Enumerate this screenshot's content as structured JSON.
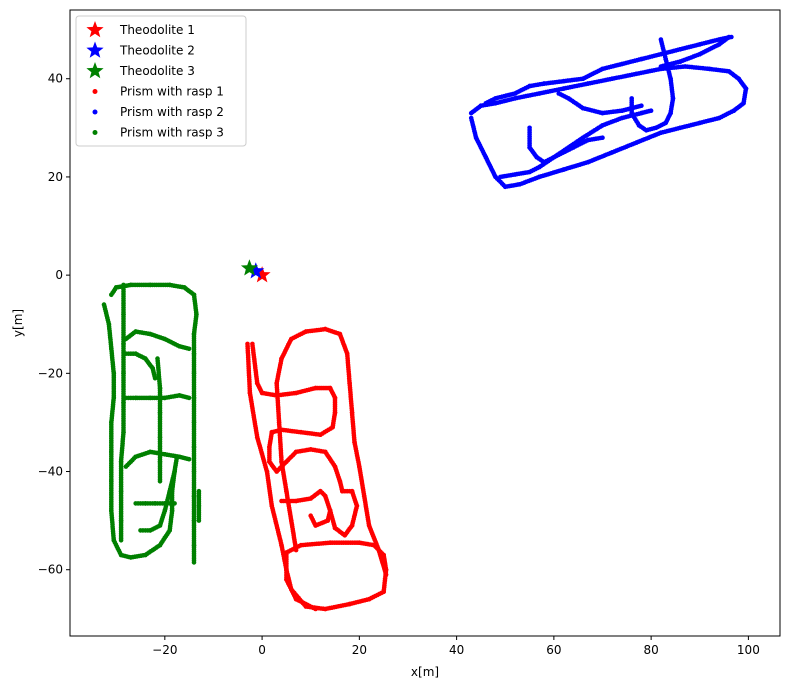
{
  "chart_data": {
    "type": "scatter",
    "xlabel": "x[m]",
    "ylabel": "y[m]",
    "xlim": [
      -39.5,
      106.5
    ],
    "ylim": [
      -73.5,
      54
    ],
    "xticks": [
      -20,
      0,
      20,
      40,
      60,
      80,
      100
    ],
    "yticks": [
      -60,
      -40,
      -20,
      0,
      20,
      40
    ],
    "grid": false,
    "legend_position": "upper-left",
    "theodolites": [
      {
        "name": "Theodolite 1",
        "color": "#ff0000",
        "x": 0.0,
        "y": 0.0
      },
      {
        "name": "Theodolite 2",
        "color": "#0000ff",
        "x": -1.3,
        "y": 0.8
      },
      {
        "name": "Theodolite 3",
        "color": "#008000",
        "x": -2.6,
        "y": 1.4
      }
    ],
    "series": [
      {
        "name": "Prism with rasp 1",
        "color": "#ff0000",
        "paths": [
          [
            [
              -3,
              -14
            ],
            [
              -2.5,
              -24
            ],
            [
              -1,
              -33
            ],
            [
              1,
              -40
            ],
            [
              2,
              -47
            ],
            [
              4,
              -55
            ],
            [
              5,
              -60
            ],
            [
              6,
              -64
            ],
            [
              9,
              -67.5
            ],
            [
              13,
              -68
            ],
            [
              18,
              -67
            ],
            [
              22,
              -66
            ],
            [
              25,
              -64.5
            ],
            [
              25.5,
              -60
            ],
            [
              25,
              -57
            ],
            [
              23,
              -55
            ],
            [
              20,
              -54.5
            ],
            [
              14,
              -54.5
            ],
            [
              8,
              -55
            ],
            [
              5,
              -56.5
            ],
            [
              5,
              -62
            ],
            [
              7,
              -66
            ],
            [
              11,
              -68
            ]
          ],
          [
            [
              3,
              -22
            ],
            [
              4,
              -17
            ],
            [
              6,
              -13
            ],
            [
              9,
              -11.5
            ],
            [
              13,
              -11
            ],
            [
              16,
              -12
            ],
            [
              17.5,
              -16
            ],
            [
              18,
              -22
            ],
            [
              18.5,
              -28
            ],
            [
              19,
              -34
            ],
            [
              20,
              -39
            ],
            [
              21,
              -45
            ],
            [
              22,
              -51
            ],
            [
              24,
              -56
            ],
            [
              25.5,
              -61
            ]
          ],
          [
            [
              -2,
              -14
            ],
            [
              -1,
              -22
            ],
            [
              0,
              -24
            ],
            [
              3,
              -24.5
            ],
            [
              7,
              -24
            ],
            [
              11,
              -23
            ],
            [
              14,
              -23
            ],
            [
              15,
              -25
            ],
            [
              15,
              -28
            ],
            [
              14.5,
              -31
            ],
            [
              12,
              -32.5
            ],
            [
              8,
              -32
            ],
            [
              4,
              -31.5
            ],
            [
              2,
              -32
            ],
            [
              1.5,
              -35
            ],
            [
              1.5,
              -38
            ],
            [
              3,
              -40
            ],
            [
              5,
              -38
            ],
            [
              7,
              -36
            ],
            [
              10,
              -35.5
            ],
            [
              13,
              -36
            ],
            [
              15,
              -39
            ],
            [
              16,
              -42
            ],
            [
              16.5,
              -44
            ],
            [
              18.5,
              -44
            ],
            [
              19.5,
              -47
            ],
            [
              18.5,
              -51
            ],
            [
              17,
              -53
            ],
            [
              15,
              -51.5
            ],
            [
              14,
              -48
            ]
          ],
          [
            [
              4,
              -46
            ],
            [
              7,
              -46
            ],
            [
              10,
              -45.5
            ],
            [
              12,
              -44
            ],
            [
              13,
              -45
            ],
            [
              14,
              -48
            ],
            [
              13.5,
              -50
            ],
            [
              11,
              -51
            ],
            [
              10,
              -49
            ]
          ],
          [
            [
              3,
              -22
            ],
            [
              3.5,
              -30
            ],
            [
              4,
              -38
            ],
            [
              5,
              -44
            ],
            [
              6,
              -50
            ],
            [
              7,
              -56
            ]
          ]
        ]
      },
      {
        "name": "Prism with rasp 2",
        "color": "#0000ff",
        "paths": [
          [
            [
              43,
              32
            ],
            [
              44,
              28
            ],
            [
              46,
              24
            ],
            [
              48,
              20
            ],
            [
              50,
              18
            ],
            [
              53,
              18.5
            ],
            [
              57,
              20
            ],
            [
              62,
              21.5
            ],
            [
              67,
              23
            ],
            [
              72,
              25
            ],
            [
              77,
              27
            ],
            [
              82,
              29
            ],
            [
              86,
              30
            ],
            [
              90,
              31
            ],
            [
              94,
              32
            ],
            [
              97,
              33.5
            ],
            [
              99,
              35
            ],
            [
              99.5,
              38
            ],
            [
              98,
              40
            ],
            [
              96,
              41.5
            ],
            [
              92,
              42
            ],
            [
              87,
              42.5
            ],
            [
              82,
              42
            ],
            [
              77,
              41
            ],
            [
              72,
              40
            ],
            [
              67,
              39
            ],
            [
              62,
              38
            ],
            [
              57,
              37
            ],
            [
              52,
              36
            ],
            [
              48,
              35
            ],
            [
              45,
              34.5
            ],
            [
              43,
              33
            ]
          ],
          [
            [
              46,
              35
            ],
            [
              48,
              36
            ],
            [
              52,
              37
            ],
            [
              55,
              38.5
            ],
            [
              58,
              39
            ],
            [
              62,
              39.5
            ],
            [
              66,
              40
            ],
            [
              70,
              42
            ],
            [
              74,
              43
            ],
            [
              78,
              44
            ],
            [
              82,
              45
            ],
            [
              86,
              46
            ],
            [
              90,
              47
            ],
            [
              94,
              48
            ],
            [
              96.5,
              48.5
            ]
          ],
          [
            [
              49,
              20
            ],
            [
              52,
              20.5
            ],
            [
              55,
              21
            ],
            [
              57,
              22
            ],
            [
              60,
              24
            ],
            [
              63,
              26
            ],
            [
              66,
              28
            ],
            [
              70,
              30.5
            ],
            [
              74,
              32
            ],
            [
              78,
              33
            ],
            [
              80,
              33.5
            ]
          ],
          [
            [
              55,
              30
            ],
            [
              55,
              26
            ],
            [
              56.5,
              24
            ],
            [
              58,
              23
            ],
            [
              61,
              24.5
            ],
            [
              64,
              26
            ],
            [
              67,
              27.5
            ],
            [
              70,
              28
            ]
          ],
          [
            [
              61,
              37
            ],
            [
              63,
              36
            ],
            [
              66,
              34
            ],
            [
              70,
              33
            ],
            [
              74,
              33.5
            ],
            [
              76,
              34
            ],
            [
              78,
              34.5
            ]
          ],
          [
            [
              82,
              48
            ],
            [
              83,
              44
            ],
            [
              84,
              40
            ],
            [
              84.5,
              36
            ],
            [
              84,
              33
            ],
            [
              83,
              31
            ],
            [
              81,
              30
            ],
            [
              79,
              29.5
            ],
            [
              77.5,
              30.5
            ],
            [
              76,
              33
            ],
            [
              76,
              36
            ]
          ],
          [
            [
              96,
              48.5
            ],
            [
              94,
              47
            ],
            [
              90,
              45
            ],
            [
              86,
              43.5
            ],
            [
              82,
              42.5
            ]
          ]
        ]
      },
      {
        "name": "Prism with rasp 3",
        "color": "#008000",
        "paths": [
          [
            [
              -32.5,
              -6
            ],
            [
              -31.5,
              -10
            ],
            [
              -31,
              -15
            ],
            [
              -30.5,
              -20
            ],
            [
              -30.5,
              -25
            ],
            [
              -31,
              -30
            ],
            [
              -31,
              -36
            ],
            [
              -31,
              -42
            ],
            [
              -31,
              -48
            ],
            [
              -30.5,
              -54
            ],
            [
              -29,
              -57
            ],
            [
              -27,
              -57.5
            ],
            [
              -24,
              -57
            ],
            [
              -21,
              -55
            ],
            [
              -19,
              -52
            ],
            [
              -18.5,
              -48
            ],
            [
              -18.5,
              -44
            ],
            [
              -18,
              -40
            ],
            [
              -17.5,
              -37
            ]
          ],
          [
            [
              -31,
              -4
            ],
            [
              -30,
              -2.5
            ],
            [
              -27,
              -2
            ],
            [
              -23,
              -2
            ],
            [
              -19,
              -2
            ],
            [
              -16,
              -2.5
            ],
            [
              -14,
              -4
            ],
            [
              -13.5,
              -8
            ],
            [
              -14,
              -12
            ],
            [
              -14,
              -16
            ],
            [
              -14,
              -20
            ],
            [
              -14,
              -25
            ],
            [
              -14,
              -30
            ],
            [
              -14,
              -35
            ],
            [
              -14,
              -40
            ],
            [
              -14,
              -45
            ],
            [
              -14,
              -50
            ],
            [
              -14,
              -55
            ],
            [
              -14,
              -58.5
            ]
          ],
          [
            [
              -28.5,
              -2
            ],
            [
              -28.5,
              -8
            ],
            [
              -28.5,
              -14
            ],
            [
              -28.5,
              -20
            ],
            [
              -28.5,
              -26
            ],
            [
              -28.5,
              -32
            ],
            [
              -29,
              -38
            ],
            [
              -29,
              -44
            ],
            [
              -29,
              -50
            ],
            [
              -29,
              -54
            ]
          ],
          [
            [
              -28,
              -13
            ],
            [
              -26,
              -11.5
            ],
            [
              -23,
              -12
            ],
            [
              -20,
              -13
            ],
            [
              -17,
              -14.5
            ],
            [
              -15,
              -15
            ]
          ],
          [
            [
              -28,
              -16
            ],
            [
              -26,
              -16
            ],
            [
              -24,
              -17
            ],
            [
              -22.5,
              -19
            ],
            [
              -22,
              -21
            ]
          ],
          [
            [
              -28,
              -25
            ],
            [
              -26,
              -25
            ],
            [
              -23,
              -25
            ],
            [
              -20,
              -25
            ],
            [
              -17,
              -24.5
            ],
            [
              -15,
              -25
            ]
          ],
          [
            [
              -28,
              -39
            ],
            [
              -26,
              -37
            ],
            [
              -23,
              -36
            ],
            [
              -20,
              -36.5
            ],
            [
              -17,
              -37
            ],
            [
              -15,
              -37.5
            ]
          ],
          [
            [
              -18,
              -40
            ],
            [
              -19,
              -44
            ],
            [
              -20,
              -48
            ],
            [
              -21,
              -51
            ],
            [
              -23,
              -52
            ],
            [
              -25,
              -52
            ]
          ],
          [
            [
              -26,
              -46.5
            ],
            [
              -24,
              -46.5
            ],
            [
              -22,
              -46.5
            ],
            [
              -20,
              -46.5
            ],
            [
              -18,
              -46.5
            ]
          ],
          [
            [
              -21.5,
              -17
            ],
            [
              -21,
              -23
            ],
            [
              -21,
              -28
            ],
            [
              -21,
              -33
            ],
            [
              -21,
              -38
            ],
            [
              -21,
              -42
            ]
          ],
          [
            [
              -13,
              -44
            ],
            [
              -13,
              -47
            ],
            [
              -13,
              -50
            ]
          ]
        ]
      }
    ]
  }
}
